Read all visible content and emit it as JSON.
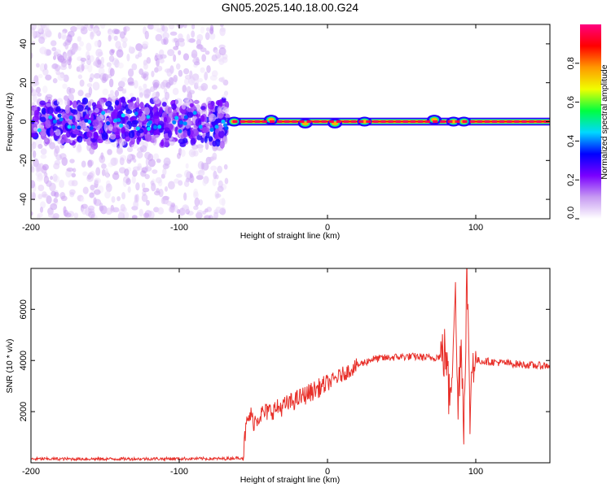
{
  "figure": {
    "title": "GN05.2025.140.18.00.G24"
  },
  "chart_data": [
    {
      "type": "heatmap",
      "xlabel": "Height of straight line (km)",
      "ylabel": "Frequency (Hz)",
      "xlim": [
        -200,
        150
      ],
      "ylim": [
        -50,
        50
      ],
      "xticks": [
        -200,
        -100,
        0,
        100
      ],
      "yticks": [
        -40,
        -20,
        0,
        20,
        40
      ],
      "colorbar": {
        "label": "Normalized spectral amplitude",
        "range": [
          0,
          1
        ],
        "ticks": [
          "0.0",
          "0.2",
          "0.4",
          "0.6",
          "0.8"
        ],
        "colormap": [
          "#ffffff",
          "#c79bf2",
          "#7a00ff",
          "#0000ff",
          "#00d8ff",
          "#00ff40",
          "#f0ff00",
          "#ff9900",
          "#ff0000",
          "#ff0080"
        ]
      },
      "regions": [
        {
          "x_range": [
            -200,
            -68
          ],
          "description_hz_spread": 50,
          "core_band_hz": [
            -10,
            10
          ]
        },
        {
          "x_range": [
            -68,
            150
          ],
          "line_hz": 0,
          "band_halfwidth_hz": 2
        }
      ],
      "features": [
        {
          "x": -63,
          "y": 0
        },
        {
          "x": -38,
          "y": 1
        },
        {
          "x": -15,
          "y": -1
        },
        {
          "x": 5,
          "y": -1
        },
        {
          "x": 25,
          "y": 0
        },
        {
          "x": 72,
          "y": 1
        },
        {
          "x": 85,
          "y": 0
        },
        {
          "x": 92,
          "y": 0
        }
      ]
    },
    {
      "type": "line",
      "xlabel": "Height of straight line (km)",
      "ylabel": "SNR (10 * v/v)",
      "xlim": [
        -200,
        150
      ],
      "ylim": [
        0,
        7600
      ],
      "xticks": [
        -200,
        -100,
        0,
        100
      ],
      "yticks": [
        2000,
        4000,
        6000
      ],
      "color": "#e8302a",
      "series": [
        {
          "x": [
            -200,
            -150,
            -100,
            -70,
            -57,
            -55,
            -52,
            -50,
            -45,
            -40,
            -35,
            -30,
            -20,
            -10,
            0,
            10,
            20,
            30,
            40,
            50,
            60,
            70,
            75,
            80,
            82,
            84,
            86,
            88,
            90,
            92,
            94,
            96,
            98,
            100,
            110,
            120,
            130,
            140,
            150
          ],
          "values": [
            150,
            150,
            160,
            160,
            200,
            1400,
            1900,
            1600,
            1900,
            2000,
            2100,
            2200,
            2500,
            2800,
            3100,
            3450,
            3800,
            4050,
            4100,
            4150,
            4150,
            4100,
            4150,
            4300,
            2500,
            3800,
            7000,
            2000,
            5000,
            1500,
            7500,
            1800,
            4200,
            4000,
            3950,
            3900,
            3850,
            3800,
            3800
          ]
        }
      ]
    }
  ]
}
